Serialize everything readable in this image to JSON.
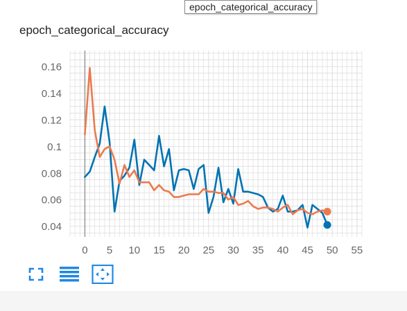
{
  "tooltip": {
    "text": "epoch_categorical_accuracy"
  },
  "card": {
    "title": "epoch_categorical_accuracy"
  },
  "colors": {
    "series_blue": "#0072b2",
    "series_orange": "#ec7a4e",
    "grid": "#dddddd",
    "axis_text": "#666666",
    "toolbar": "#1e88e5"
  },
  "toolbar": {
    "buttons": [
      {
        "icon": "fullscreen-icon"
      },
      {
        "icon": "menu-lines-icon"
      },
      {
        "icon": "fit-domain-icon"
      }
    ]
  },
  "chart_data": {
    "type": "line",
    "title": "",
    "xlabel": "",
    "ylabel": "",
    "xlim": [
      -3,
      56
    ],
    "ylim": [
      0.032,
      0.172
    ],
    "xticks": [
      0,
      5,
      10,
      15,
      20,
      25,
      30,
      35,
      40,
      45,
      50,
      55
    ],
    "yticks": [
      0.04,
      0.06,
      0.08,
      0.1,
      0.12,
      0.14,
      0.16
    ],
    "ytick_labels": [
      "0.04",
      "0.06",
      "0.08",
      "0.1",
      "0.12",
      "0.14",
      "0.16"
    ],
    "grid": true,
    "x": [
      0,
      1,
      2,
      3,
      4,
      5,
      6,
      7,
      8,
      9,
      10,
      11,
      12,
      13,
      14,
      15,
      16,
      17,
      18,
      19,
      20,
      21,
      22,
      23,
      24,
      25,
      26,
      27,
      28,
      29,
      30,
      31,
      32,
      33,
      34,
      35,
      36,
      37,
      38,
      39,
      40,
      41,
      42,
      43,
      44,
      45,
      46,
      47,
      48,
      49
    ],
    "series": [
      {
        "color": "#0072b2",
        "values": [
          0.077,
          0.081,
          0.092,
          0.102,
          0.13,
          0.103,
          0.051,
          0.074,
          0.078,
          0.084,
          0.105,
          0.071,
          0.09,
          0.086,
          0.082,
          0.108,
          0.085,
          0.098,
          0.067,
          0.082,
          0.083,
          0.082,
          0.068,
          0.083,
          0.086,
          0.05,
          0.062,
          0.084,
          0.058,
          0.068,
          0.057,
          0.083,
          0.066,
          0.066,
          0.065,
          0.064,
          0.062,
          0.054,
          0.051,
          0.053,
          0.063,
          0.051,
          0.051,
          0.052,
          0.056,
          0.039,
          0.056,
          0.053,
          0.05,
          0.041
        ]
      },
      {
        "color": "#ec7a4e",
        "values": [
          0.109,
          0.159,
          0.112,
          0.092,
          0.098,
          0.1,
          0.09,
          0.072,
          0.086,
          0.077,
          0.082,
          0.073,
          0.073,
          0.073,
          0.067,
          0.071,
          0.067,
          0.066,
          0.062,
          0.062,
          0.063,
          0.064,
          0.064,
          0.064,
          0.068,
          0.066,
          0.066,
          0.065,
          0.065,
          0.06,
          0.062,
          0.056,
          0.057,
          0.059,
          0.055,
          0.053,
          0.054,
          0.054,
          0.053,
          0.051,
          0.054,
          0.056,
          0.049,
          0.052,
          0.053,
          0.05,
          0.049,
          0.051,
          0.052,
          0.051
        ]
      }
    ]
  }
}
